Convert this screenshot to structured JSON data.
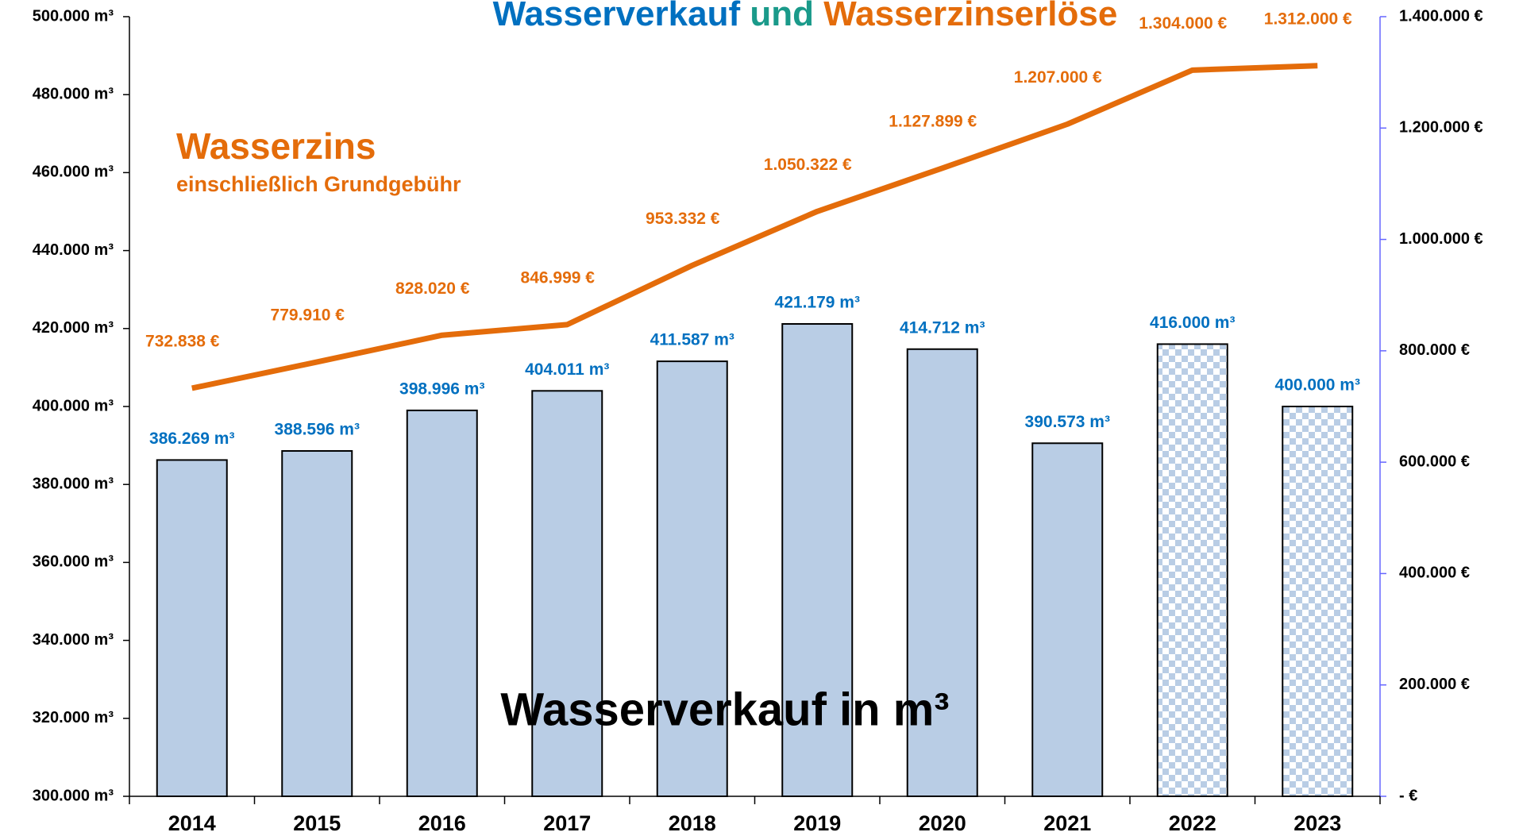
{
  "chart_data": {
    "type": "bar_line",
    "title_parts": [
      {
        "text": "Wasserverkauf",
        "color": "#0070c0"
      },
      {
        "text": "und",
        "color": "#1a9a8a"
      },
      {
        "text": "Wasserzinserlöse",
        "color": "#e46c0a"
      }
    ],
    "categories": [
      "2014",
      "2015",
      "2016",
      "2017",
      "2018",
      "2019",
      "2020",
      "2021",
      "2022",
      "2023"
    ],
    "series": [
      {
        "name": "Wasserverkauf in m³",
        "type": "bar",
        "color": "#b9cde5",
        "label_color": "#0070c0",
        "values": [
          386269,
          388596,
          398996,
          404011,
          411587,
          421179,
          414712,
          390573,
          416000,
          400000
        ],
        "value_labels": [
          "386.269 m³",
          "388.596 m³",
          "398.996 m³",
          "404.011 m³",
          "411.587 m³",
          "421.179 m³",
          "414.712 m³",
          "390.573 m³",
          "416.000 m³",
          "400.000 m³"
        ],
        "hatched": [
          false,
          false,
          false,
          false,
          false,
          false,
          false,
          false,
          true,
          true
        ]
      },
      {
        "name": "Wasserzins",
        "type": "line",
        "axis": "y2",
        "color": "#e46c0a",
        "values": [
          732838,
          779910,
          828020,
          846999,
          953332,
          1050322,
          1127899,
          1207000,
          1304000,
          1312000
        ],
        "value_labels": [
          "732.838 €",
          "779.910 €",
          "828.020 €",
          "846.999 €",
          "953.332 €",
          "1.050.322 €",
          "1.127.899 €",
          "1.207.000 €",
          "1.304.000 €",
          "1.312.000 €"
        ]
      }
    ],
    "annotation": "einschließlich Grundgebühr",
    "ylim": [
      300000,
      500000
    ],
    "yticks": [
      {
        "value": 300000,
        "label": "300.000 m³"
      },
      {
        "value": 320000,
        "label": "320.000 m³"
      },
      {
        "value": 340000,
        "label": "340.000 m³"
      },
      {
        "value": 360000,
        "label": "360.000 m³"
      },
      {
        "value": 380000,
        "label": "380.000 m³"
      },
      {
        "value": 400000,
        "label": "400.000 m³"
      },
      {
        "value": 420000,
        "label": "420.000 m³"
      },
      {
        "value": 440000,
        "label": "440.000 m³"
      },
      {
        "value": 460000,
        "label": "460.000 m³"
      },
      {
        "value": 480000,
        "label": "480.000 m³"
      },
      {
        "value": 500000,
        "label": "500.000 m³"
      }
    ],
    "y2lim": [
      0,
      1400000
    ],
    "y2ticks": [
      {
        "value": 0,
        "label": "- €"
      },
      {
        "value": 200000,
        "label": "200.000 €"
      },
      {
        "value": 400000,
        "label": "400.000 €"
      },
      {
        "value": 600000,
        "label": "600.000 €"
      },
      {
        "value": 800000,
        "label": "800.000 €"
      },
      {
        "value": 1000000,
        "label": "1.000.000 €"
      },
      {
        "value": 1200000,
        "label": "1.200.000 €"
      },
      {
        "value": 1400000,
        "label": "1.400.000 €"
      }
    ]
  }
}
